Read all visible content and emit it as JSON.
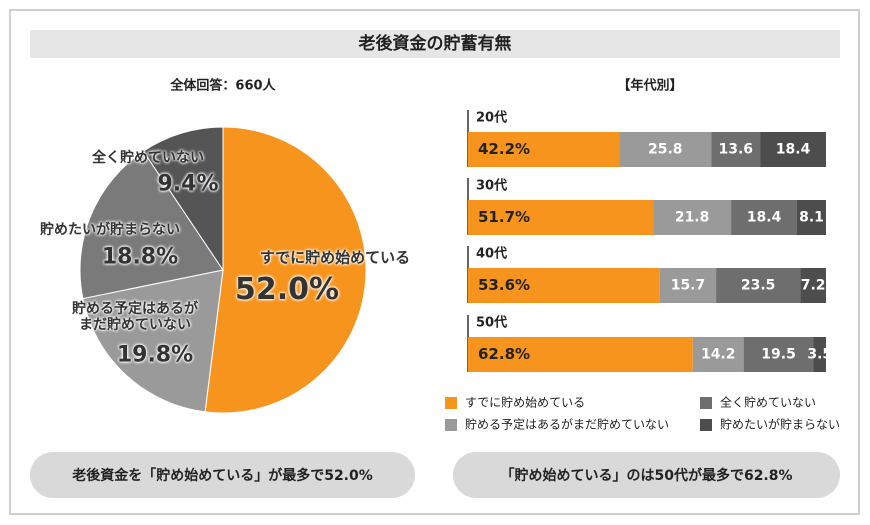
{
  "title": "老後資金の貯蓄有無",
  "summaries": [
    "老後資金を「貯め始めている」が最多で52.0%",
    "「貯め始めている」のは50代が最多で62.8%"
  ],
  "chart_data": [
    {
      "type": "pie",
      "subtitle": "全体回答：660人",
      "categories": [
        "すでに貯め始めている",
        "貯める予定はあるがまだ貯めていない",
        "貯めたいが貯まらない",
        "全く貯めていない"
      ],
      "values": [
        52.0,
        19.8,
        18.8,
        9.4
      ],
      "value_labels": [
        "52.0%",
        "19.8%",
        "18.8%",
        "9.4%"
      ],
      "colors": [
        "#f7941d",
        "#9a9a9a",
        "#7a7a7a",
        "#555555"
      ]
    },
    {
      "type": "stacked-barh",
      "subtitle": "【年代別】",
      "categories": [
        "20代",
        "30代",
        "40代",
        "50代"
      ],
      "xlim": [
        0,
        100
      ],
      "series": [
        {
          "name": "すでに貯め始めている",
          "color": "#f7941d",
          "values": [
            42.2,
            51.7,
            53.6,
            62.8
          ],
          "value_labels": [
            "42.2%",
            "51.7%",
            "53.6%",
            "62.8%"
          ]
        },
        {
          "name": "貯める予定はあるがまだ貯めていない",
          "color": "#9a9a9a",
          "values": [
            25.8,
            21.8,
            15.7,
            14.2
          ]
        },
        {
          "name": "全く貯めていない",
          "color": "#6e6e6e",
          "values": [
            13.6,
            18.4,
            23.5,
            19.5
          ]
        },
        {
          "name": "貯めたいが貯まらない",
          "color": "#4d4d4d",
          "values": [
            18.4,
            8.1,
            7.2,
            3.5
          ]
        }
      ]
    }
  ]
}
